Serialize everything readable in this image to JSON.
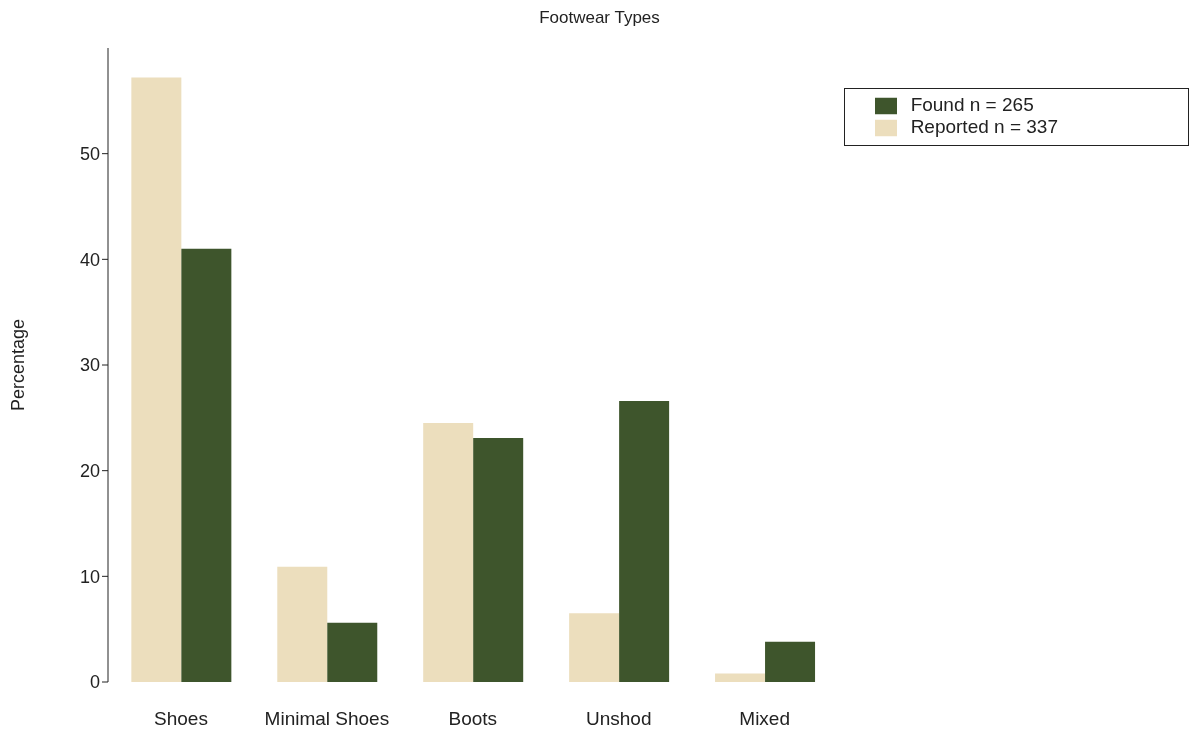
{
  "chart_data": {
    "type": "bar",
    "title": "Footwear Types",
    "ylabel": "Percentage",
    "categories": [
      "Shoes",
      "Minimal Shoes",
      "Boots",
      "Unshod",
      "Mixed"
    ],
    "series": [
      {
        "name": "Reported  n = 337",
        "color": "#ecdebd",
        "values": [
          57.2,
          10.9,
          24.5,
          6.5,
          0.8
        ]
      },
      {
        "name": "Found  n = 265",
        "color": "#3e552c",
        "values": [
          41.0,
          5.6,
          23.1,
          26.6,
          3.8
        ]
      }
    ],
    "ylim": [
      0,
      60
    ],
    "yticks": [
      0,
      10,
      20,
      30,
      40,
      50
    ],
    "grid": false,
    "legend": "top right"
  }
}
